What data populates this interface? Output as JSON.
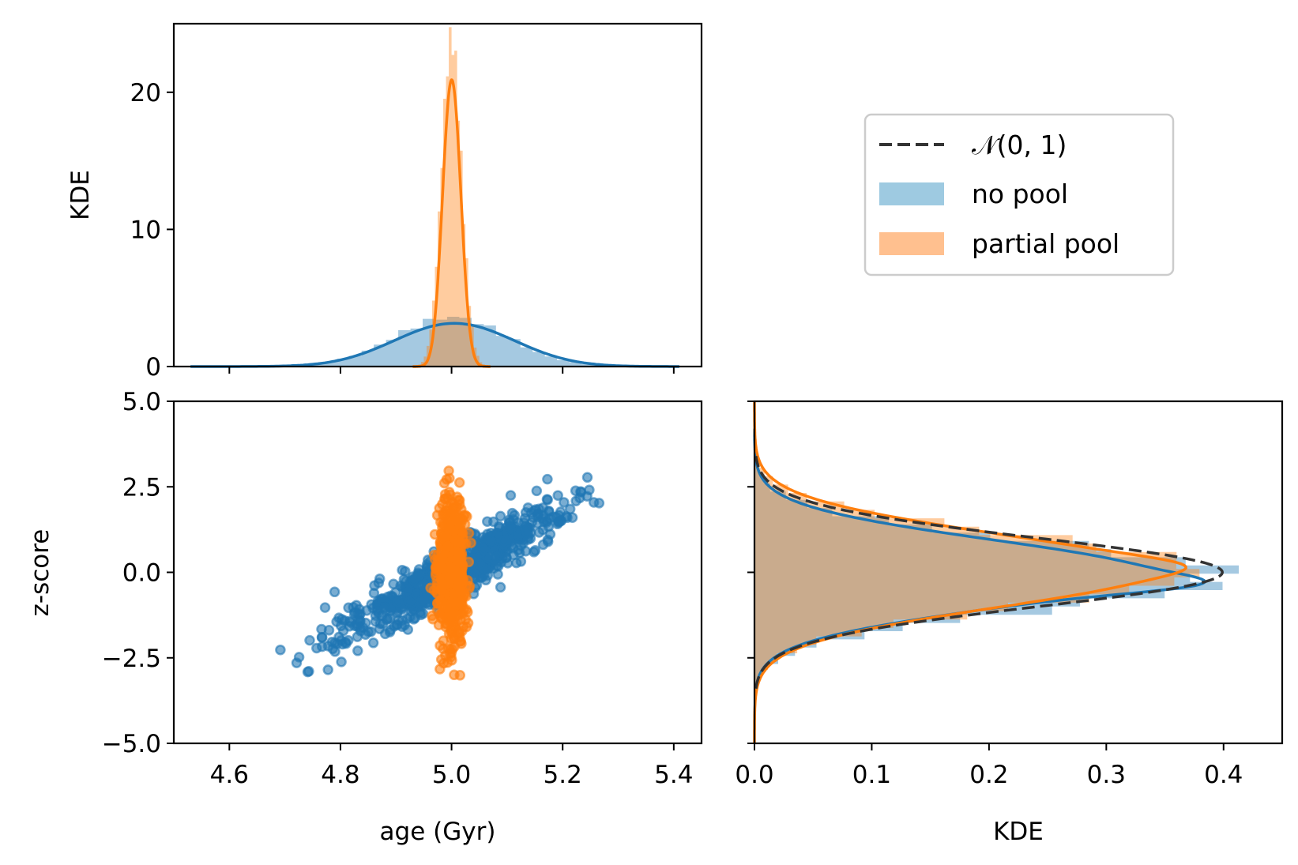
{
  "colors": {
    "no_pool": "#1f77b4",
    "partial_pool": "#ff7f0e",
    "no_pool_fill": "#9ecae1",
    "partial_pool_fill": "#ffc08f",
    "normal": "#333333"
  },
  "legend": {
    "items": [
      {
        "label": "𝒩(0, 1)",
        "style": "dashed-line"
      },
      {
        "label": "no pool",
        "style": "patch-no-pool"
      },
      {
        "label": "partial pool",
        "style": "patch-partial-pool"
      }
    ]
  },
  "chart_data": [
    {
      "panel": "top-marginal",
      "type": "area",
      "title": "",
      "xlabel": "",
      "ylabel": "KDE",
      "xlim": [
        4.5,
        5.45
      ],
      "ylim": [
        0,
        25
      ],
      "x_ticks": [
        4.6,
        4.8,
        5.0,
        5.2,
        5.4
      ],
      "y_ticks": [
        0,
        10,
        20
      ],
      "y_tick_labels": [
        "0",
        "10",
        "20"
      ],
      "grid": false,
      "series": [
        {
          "name": "no pool",
          "kind": "kde",
          "x_range": [
            4.53,
            5.41
          ],
          "mean": 5.0,
          "sd": 0.1,
          "peak": 3.3
        },
        {
          "name": "partial pool",
          "kind": "kde",
          "x_range": [
            4.93,
            5.07
          ],
          "mean": 5.0,
          "sd": 0.018,
          "peak": 22.0
        },
        {
          "name": "no pool",
          "kind": "histogram",
          "x_range": [
            4.53,
            5.41
          ],
          "peak": 3.6
        },
        {
          "name": "partial pool",
          "kind": "histogram",
          "x_range": [
            4.93,
            5.07
          ],
          "peak": 24
        }
      ]
    },
    {
      "panel": "scatter",
      "type": "scatter",
      "title": "",
      "xlabel": "age (Gyr)",
      "ylabel": "z-score",
      "xlim": [
        4.5,
        5.45
      ],
      "ylim": [
        -5.0,
        5.0
      ],
      "x_ticks": [
        4.6,
        4.8,
        5.0,
        5.2,
        5.4
      ],
      "x_tick_labels": [
        "4.6",
        "4.8",
        "5.0",
        "5.2",
        "5.4"
      ],
      "y_ticks": [
        -5.0,
        -2.5,
        0.0,
        2.5,
        5.0
      ],
      "y_tick_labels": [
        "−5.0",
        "−2.5",
        "0.0",
        "2.5",
        "5.0"
      ],
      "grid": false,
      "series": [
        {
          "name": "no pool",
          "x_center": 5.0,
          "x_sd": 0.1,
          "z_sd": 1.0,
          "correlation": 0.92,
          "x_range": [
            4.62,
            5.32
          ],
          "z_range": [
            -2.95,
            3.1
          ],
          "n_points": 800
        },
        {
          "name": "partial pool",
          "x_center": 5.0,
          "x_sd": 0.012,
          "z_sd": 1.0,
          "correlation": 0.0,
          "x_range": [
            4.97,
            5.03
          ],
          "z_range": [
            -3.7,
            3.7
          ],
          "n_points": 700
        }
      ]
    },
    {
      "panel": "right-marginal",
      "type": "area",
      "orientation": "horizontal",
      "title": "",
      "xlabel": "KDE",
      "ylabel": "",
      "xlim": [
        0.0,
        0.45
      ],
      "ylim": [
        -5.0,
        5.0
      ],
      "x_ticks": [
        0.0,
        0.1,
        0.2,
        0.3,
        0.4
      ],
      "x_tick_labels": [
        "0.0",
        "0.1",
        "0.2",
        "0.3",
        "0.4"
      ],
      "y_ticks": [
        -5.0,
        -2.5,
        0.0,
        2.5,
        5.0
      ],
      "grid": false,
      "series": [
        {
          "name": "𝒩(0, 1)",
          "kind": "normal-pdf",
          "mean": 0.0,
          "sd": 1.0,
          "z_range": [
            -3.4,
            3.4
          ]
        },
        {
          "name": "no pool",
          "kind": "kde",
          "peak": 0.39,
          "peak_z": -0.35,
          "z_range": [
            -3.4,
            4.2
          ]
        },
        {
          "name": "partial pool",
          "kind": "kde",
          "peak": 0.36,
          "peak_z": 0.2,
          "z_range": [
            -5.0,
            5.0
          ]
        },
        {
          "name": "no pool",
          "kind": "histogram",
          "peak": 0.43,
          "z_range": [
            -3.4,
            3.8
          ]
        },
        {
          "name": "partial pool",
          "kind": "histogram",
          "peak": 0.395,
          "z_range": [
            -3.6,
            3.8
          ]
        }
      ]
    }
  ]
}
